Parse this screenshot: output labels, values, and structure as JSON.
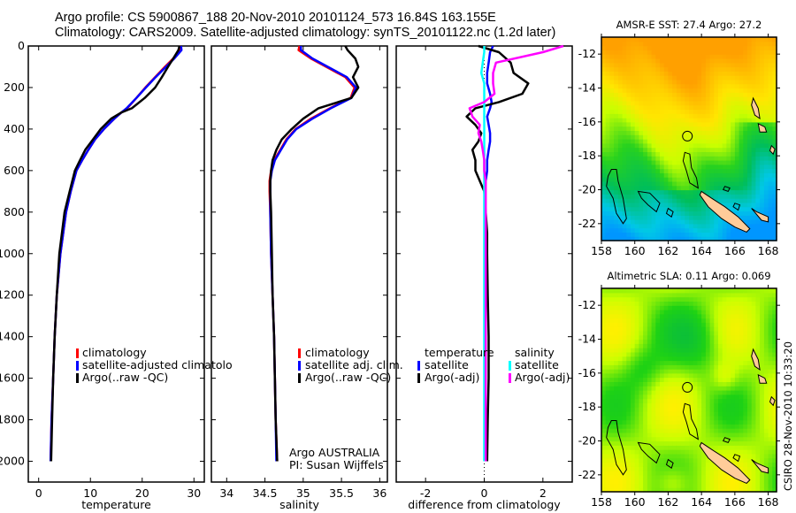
{
  "header": {
    "line1": "Argo profile: CS 5900867_188 20-Nov-2010 20101124_573 16.84S 163.155E",
    "line2": "Climatology: CARS2009. Satellite-adjusted climatology: synTS_20101122.nc (1.2d later)"
  },
  "side_stamp": "CSIRO 28-Nov-2010 10:33:20",
  "credits": {
    "line1": "Argo AUSTRALIA",
    "line2": "PI: Susan Wijffels"
  },
  "colors": {
    "climatology": "#ff0000",
    "satellite": "#0000ff",
    "argo": "#000000",
    "sal_satellite": "#00ffff",
    "sal_argo": "#ff00ff",
    "land": "#ffcc99"
  },
  "chart_data": [
    {
      "type": "line",
      "name": "temperature-profile",
      "xlabel": "temperature",
      "ylabel": "",
      "xlim": [
        -2,
        32
      ],
      "ylim": [
        2100,
        0
      ],
      "xticks": [
        "0",
        "10",
        "20",
        "30"
      ],
      "xtick_values": [
        0,
        10,
        20,
        30
      ],
      "yticks": [
        "0",
        "200",
        "400",
        "600",
        "800",
        "1000",
        "1200",
        "1400",
        "1600",
        "1800",
        "2000"
      ],
      "ytick_values": [
        0,
        200,
        400,
        600,
        800,
        1000,
        1200,
        1400,
        1600,
        1800,
        2000
      ],
      "legend": [
        "climatology",
        "satellite-adjusted climatolo",
        "Argo(..raw -QC)"
      ],
      "legend_position": "center-right",
      "depth": [
        0,
        20,
        60,
        100,
        150,
        200,
        250,
        300,
        320,
        350,
        400,
        450,
        500,
        550,
        600,
        700,
        800,
        1000,
        1200,
        1400,
        1600,
        1800,
        2000
      ],
      "series": [
        {
          "name": "climatology",
          "color": "#ff0000",
          "values": [
            27.5,
            27.3,
            26.0,
            24.4,
            22.5,
            20.6,
            18.9,
            17.1,
            16.0,
            14.6,
            12.6,
            10.9,
            9.6,
            8.4,
            7.3,
            6.2,
            5.3,
            4.2,
            3.5,
            3.1,
            2.8,
            2.5,
            2.3
          ]
        },
        {
          "name": "satellite-adjusted climatology",
          "color": "#0000ff",
          "values": [
            27.5,
            27.6,
            26.2,
            24.6,
            22.6,
            20.7,
            18.9,
            17.0,
            16.0,
            14.6,
            12.6,
            10.9,
            9.6,
            8.4,
            7.3,
            6.2,
            5.3,
            4.2,
            3.5,
            3.1,
            2.8,
            2.5,
            2.3
          ]
        },
        {
          "name": "Argo(..raw -QC)",
          "color": "#000000",
          "values": [
            27.2,
            27.0,
            26.0,
            25.0,
            23.8,
            22.5,
            20.5,
            18.0,
            16.0,
            14.0,
            12.0,
            10.5,
            9.0,
            8.0,
            7.0,
            6.0,
            5.0,
            4.0,
            3.5,
            3.1,
            2.8,
            2.6,
            2.4
          ]
        }
      ]
    },
    {
      "type": "line",
      "name": "salinity-profile",
      "xlabel": "salinity",
      "xlim": [
        33.8,
        36.1
      ],
      "ylim": [
        2100,
        0
      ],
      "xticks": [
        "34",
        "34.5",
        "35",
        "35.5",
        "36"
      ],
      "xtick_values": [
        34,
        34.5,
        35,
        35.5,
        36
      ],
      "legend": [
        "climatology",
        "satellite adj. clim.",
        "Argo(..raw -QC)"
      ],
      "legend_position": "center-right",
      "depth": [
        0,
        20,
        60,
        100,
        150,
        200,
        250,
        300,
        350,
        400,
        450,
        500,
        550,
        600,
        650,
        700,
        800,
        1000,
        1200,
        1400,
        1600,
        1800,
        2000
      ],
      "series": [
        {
          "name": "climatology",
          "color": "#ff0000",
          "values": [
            34.95,
            34.94,
            35.1,
            35.3,
            35.55,
            35.67,
            35.62,
            35.35,
            35.1,
            34.9,
            34.78,
            34.7,
            34.62,
            34.58,
            34.56,
            34.56,
            34.57,
            34.58,
            34.6,
            34.62,
            34.63,
            34.64,
            34.66
          ]
        },
        {
          "name": "satellite adj. clim.",
          "color": "#0000ff",
          "values": [
            34.97,
            34.97,
            35.12,
            35.32,
            35.57,
            35.69,
            35.63,
            35.36,
            35.12,
            34.91,
            34.79,
            34.71,
            34.63,
            34.59,
            34.57,
            34.57,
            34.57,
            34.58,
            34.6,
            34.62,
            34.63,
            34.64,
            34.65
          ]
        },
        {
          "name": "Argo(..raw -QC)",
          "color": "#000000",
          "values": [
            35.55,
            35.58,
            35.68,
            35.72,
            35.65,
            35.72,
            35.63,
            35.2,
            35.0,
            34.85,
            34.72,
            34.65,
            34.6,
            34.58,
            34.57,
            34.57,
            34.58,
            34.59,
            34.6,
            34.62,
            34.63,
            34.64,
            34.66
          ]
        }
      ]
    },
    {
      "type": "line",
      "name": "difference-profile",
      "xlabel": "difference from climatology",
      "xlim": [
        -3,
        3
      ],
      "ylim": [
        2100,
        0
      ],
      "xticks": [
        "-2",
        "0",
        "2"
      ],
      "xtick_values": [
        -2,
        0,
        2
      ],
      "legend_groups": [
        {
          "title": "temperature",
          "items": [
            "satellite",
            "Argo(-adj)"
          ]
        },
        {
          "title": "salinity",
          "items": [
            "satellite",
            "Argo(-adj)"
          ]
        }
      ],
      "legend_position": "lower-center",
      "depth": [
        0,
        30,
        80,
        130,
        180,
        230,
        270,
        300,
        340,
        380,
        420,
        460,
        500,
        550,
        600,
        650,
        700,
        800,
        900,
        1000,
        1200,
        1400,
        1600,
        1800,
        2000
      ],
      "series": [
        {
          "name": "temperature satellite",
          "color": "#0000ff",
          "values": [
            0.3,
            0.2,
            0.15,
            0.1,
            0.1,
            0.2,
            0.25,
            0.2,
            0.1,
            0.15,
            0.2,
            0.2,
            0.15,
            0.1,
            0.1,
            0.05,
            0.03,
            0.02,
            0.02,
            0.02,
            0.02,
            0.02,
            0.02,
            0.02,
            0.02
          ]
        },
        {
          "name": "temperature Argo(-adj)",
          "color": "#000000",
          "values": [
            -0.2,
            0.5,
            0.9,
            1.0,
            1.5,
            1.3,
            0.5,
            -0.3,
            -0.6,
            -0.3,
            -0.1,
            -0.2,
            -0.4,
            -0.3,
            -0.3,
            -0.15,
            0.0,
            0.05,
            0.1,
            0.1,
            0.12,
            0.15,
            0.15,
            0.12,
            0.1
          ]
        },
        {
          "name": "salinity satellite",
          "color": "#00ffff",
          "values": [
            0.0,
            0.0,
            -0.05,
            -0.1,
            0.0,
            0.0,
            0.0,
            0.0,
            0.0,
            0.0,
            0.0,
            0.0,
            0.0,
            0.0,
            0.0,
            0.0,
            0.0,
            0.0,
            0.0,
            0.0,
            0.0,
            0.0,
            0.0,
            0.0,
            0.0
          ]
        },
        {
          "name": "salinity Argo(-adj)",
          "color": "#ff00ff",
          "values": [
            2.7,
            2.0,
            0.4,
            0.3,
            0.3,
            0.35,
            0.0,
            -0.5,
            -0.4,
            -0.15,
            -0.2,
            -0.1,
            -0.05,
            0.0,
            0.0,
            0.05,
            0.05,
            0.05,
            0.05,
            0.05,
            0.05,
            0.05,
            0.05,
            0.05,
            0.05
          ]
        }
      ]
    },
    {
      "type": "heatmap",
      "name": "sst-map",
      "title": "AMSR-E SST: 27.4 Argo: 27.2",
      "xlim": [
        158,
        168.5
      ],
      "ylim": [
        -23,
        -11
      ],
      "xticks": [
        "158",
        "160",
        "162",
        "164",
        "166",
        "168"
      ],
      "yticks": [
        "-12",
        "-14",
        "-16",
        "-18",
        "-20",
        "-22"
      ],
      "marker": {
        "lon": 163.155,
        "lat": -16.84
      },
      "value": 27.4,
      "argo_value": 27.2
    },
    {
      "type": "heatmap",
      "name": "sla-map",
      "title": "Altimetric SLA: 0.11 Argo: 0.069",
      "xlim": [
        158,
        168.5
      ],
      "ylim": [
        -23,
        -11
      ],
      "xticks": [
        "158",
        "160",
        "162",
        "164",
        "166",
        "168"
      ],
      "yticks": [
        "-12",
        "-14",
        "-16",
        "-18",
        "-20",
        "-22"
      ],
      "marker": {
        "lon": 163.155,
        "lat": -16.84
      },
      "value": 0.11,
      "argo_value": 0.069
    }
  ]
}
